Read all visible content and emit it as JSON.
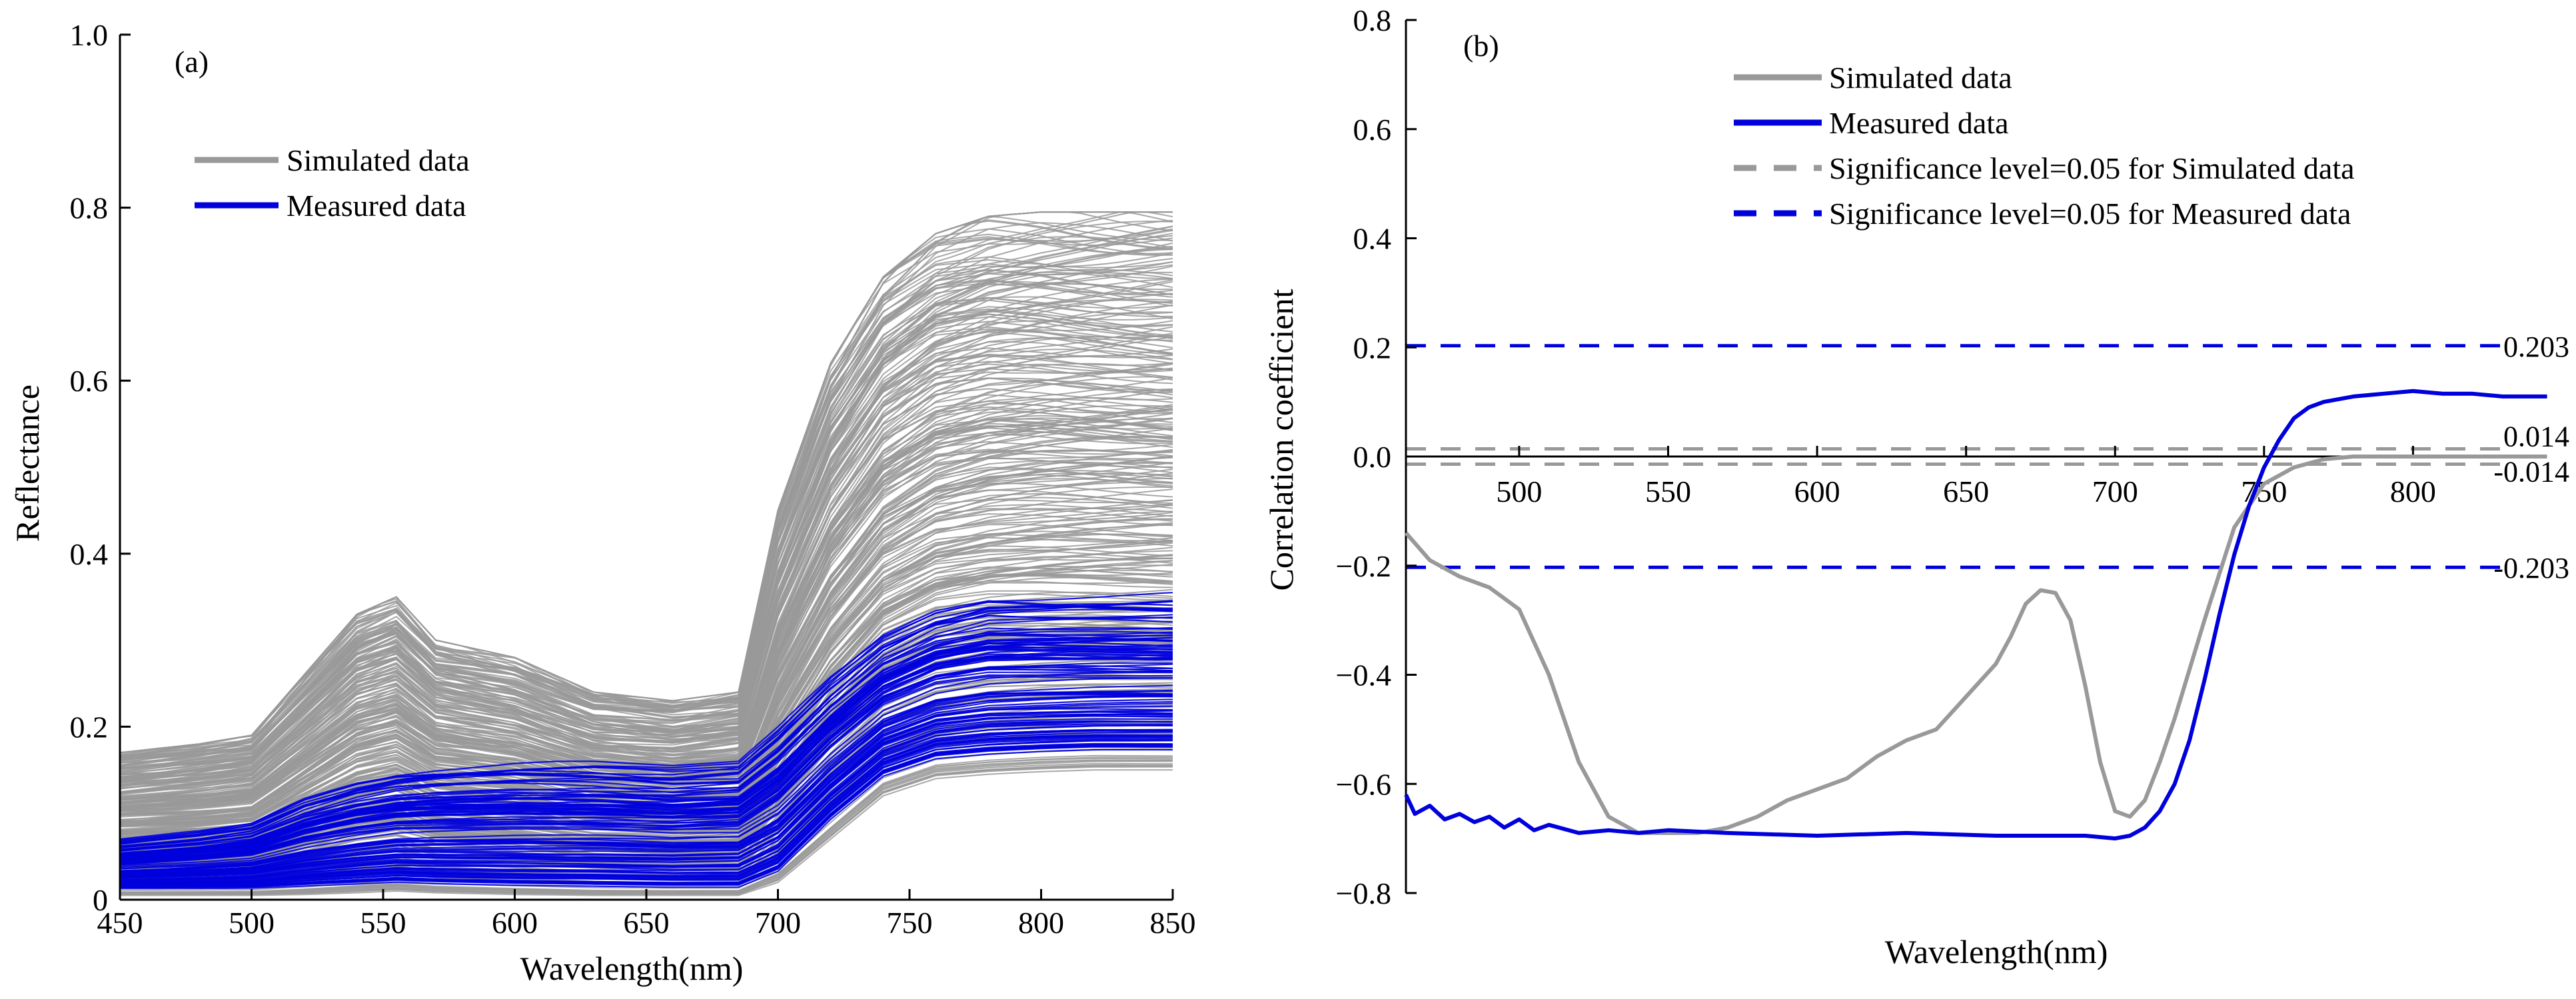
{
  "chart_data": [
    {
      "id": "a",
      "type": "line",
      "panel_label": "(a)",
      "xlabel": "Wavelength(nm)",
      "ylabel": "Reflectance",
      "xlim": [
        450,
        850
      ],
      "ylim": [
        0,
        1.0
      ],
      "xticks": [
        450,
        500,
        550,
        600,
        650,
        700,
        750,
        800,
        850
      ],
      "yticks": [
        0,
        0.2,
        0.4,
        0.6,
        0.8,
        1.0
      ],
      "ytick_labels": [
        "0",
        "0.2",
        "0.4",
        "0.6",
        "0.8",
        "1.0"
      ],
      "legend_position": "upper-left",
      "legend": [
        {
          "label": "Simulated data",
          "color": "#999999",
          "style": "solid"
        },
        {
          "label": "Measured data",
          "color": "#0000dd",
          "style": "solid"
        }
      ],
      "series": [
        {
          "name": "Simulated data",
          "color": "#999999",
          "description": "Dense family of simulated reflectance spectra filling the band between the envelopes",
          "x": [
            450,
            480,
            500,
            520,
            540,
            555,
            570,
            600,
            630,
            660,
            685,
            700,
            720,
            740,
            760,
            780,
            800,
            820,
            850
          ],
          "upper_envelope": [
            0.17,
            0.18,
            0.19,
            0.26,
            0.33,
            0.35,
            0.3,
            0.28,
            0.24,
            0.23,
            0.24,
            0.45,
            0.62,
            0.72,
            0.77,
            0.79,
            0.795,
            0.795,
            0.795
          ],
          "lower_envelope": [
            0.005,
            0.005,
            0.005,
            0.006,
            0.008,
            0.01,
            0.008,
            0.006,
            0.005,
            0.005,
            0.005,
            0.02,
            0.07,
            0.12,
            0.14,
            0.145,
            0.148,
            0.15,
            0.15
          ]
        },
        {
          "name": "Measured data",
          "color": "#0000dd",
          "description": "Family of measured reflectance spectra",
          "x": [
            450,
            480,
            500,
            520,
            540,
            555,
            570,
            600,
            630,
            660,
            685,
            700,
            720,
            740,
            760,
            780,
            800,
            820,
            850
          ],
          "upper_envelope": [
            0.07,
            0.08,
            0.09,
            0.12,
            0.14,
            0.15,
            0.155,
            0.16,
            0.16,
            0.155,
            0.16,
            0.2,
            0.26,
            0.31,
            0.34,
            0.355,
            0.355,
            0.355,
            0.355
          ],
          "lower_envelope": [
            0.012,
            0.012,
            0.012,
            0.014,
            0.016,
            0.018,
            0.016,
            0.014,
            0.013,
            0.012,
            0.012,
            0.03,
            0.09,
            0.14,
            0.16,
            0.165,
            0.168,
            0.17,
            0.17
          ]
        }
      ]
    },
    {
      "id": "b",
      "type": "line",
      "panel_label": "(b)",
      "xlabel": "Wavelength(nm)",
      "ylabel": "Correlation coefficient",
      "xlim": [
        462,
        850
      ],
      "ylim": [
        -0.8,
        0.8
      ],
      "xticks": [
        500,
        550,
        600,
        650,
        700,
        750,
        800
      ],
      "yticks": [
        -0.8,
        -0.6,
        -0.4,
        -0.2,
        0.0,
        0.2,
        0.4,
        0.6,
        0.8
      ],
      "ytick_labels": [
        "−0.8",
        "−0.6",
        "−0.4",
        "−0.2",
        "0.0",
        "0.2",
        "0.4",
        "0.6",
        "0.8"
      ],
      "legend_position": "top-right",
      "legend": [
        {
          "label": "Simulated data",
          "color": "#999999",
          "style": "solid"
        },
        {
          "label": "Measured data",
          "color": "#0000dd",
          "style": "solid"
        },
        {
          "label": "Significance level=0.05 for Simulated data",
          "color": "#999999",
          "style": "dashed"
        },
        {
          "label": "Significance level=0.05 for Measured data",
          "color": "#0000dd",
          "style": "dashed"
        }
      ],
      "reference_lines": [
        {
          "value": 0.203,
          "label": "0.203",
          "color": "#0000dd"
        },
        {
          "value": 0.014,
          "label": "0.014",
          "color": "#999999"
        },
        {
          "value": -0.014,
          "label": "-0.014",
          "color": "#999999"
        },
        {
          "value": -0.203,
          "label": "-0.203",
          "color": "#0000dd"
        }
      ],
      "series": [
        {
          "name": "Simulated data",
          "color": "#999999",
          "x": [
            462,
            470,
            480,
            490,
            500,
            510,
            520,
            530,
            540,
            550,
            560,
            570,
            580,
            590,
            600,
            610,
            620,
            630,
            640,
            650,
            660,
            665,
            670,
            675,
            680,
            685,
            690,
            695,
            700,
            705,
            710,
            715,
            720,
            730,
            740,
            750,
            760,
            770,
            780,
            790,
            800,
            820,
            845
          ],
          "values": [
            -0.14,
            -0.19,
            -0.22,
            -0.24,
            -0.28,
            -0.4,
            -0.56,
            -0.66,
            -0.69,
            -0.69,
            -0.69,
            -0.68,
            -0.66,
            -0.63,
            -0.61,
            -0.59,
            -0.55,
            -0.52,
            -0.5,
            -0.44,
            -0.38,
            -0.33,
            -0.27,
            -0.245,
            -0.25,
            -0.3,
            -0.42,
            -0.56,
            -0.65,
            -0.66,
            -0.63,
            -0.56,
            -0.48,
            -0.3,
            -0.13,
            -0.05,
            -0.02,
            -0.005,
            0.0,
            0.0,
            0.0,
            0.0,
            0.0
          ]
        },
        {
          "name": "Measured data",
          "color": "#0000dd",
          "x": [
            462,
            465,
            470,
            475,
            480,
            485,
            490,
            495,
            500,
            505,
            510,
            520,
            530,
            540,
            550,
            570,
            600,
            630,
            660,
            690,
            700,
            705,
            710,
            715,
            720,
            725,
            730,
            735,
            740,
            745,
            750,
            755,
            760,
            765,
            770,
            780,
            790,
            800,
            810,
            820,
            830,
            845
          ],
          "values": [
            -0.62,
            -0.655,
            -0.64,
            -0.665,
            -0.655,
            -0.67,
            -0.66,
            -0.68,
            -0.665,
            -0.685,
            -0.675,
            -0.69,
            -0.685,
            -0.69,
            -0.685,
            -0.69,
            -0.695,
            -0.69,
            -0.695,
            -0.695,
            -0.7,
            -0.695,
            -0.68,
            -0.65,
            -0.6,
            -0.52,
            -0.41,
            -0.29,
            -0.18,
            -0.09,
            -0.02,
            0.03,
            0.07,
            0.09,
            0.1,
            0.11,
            0.115,
            0.12,
            0.115,
            0.115,
            0.11,
            0.11
          ]
        }
      ]
    }
  ]
}
